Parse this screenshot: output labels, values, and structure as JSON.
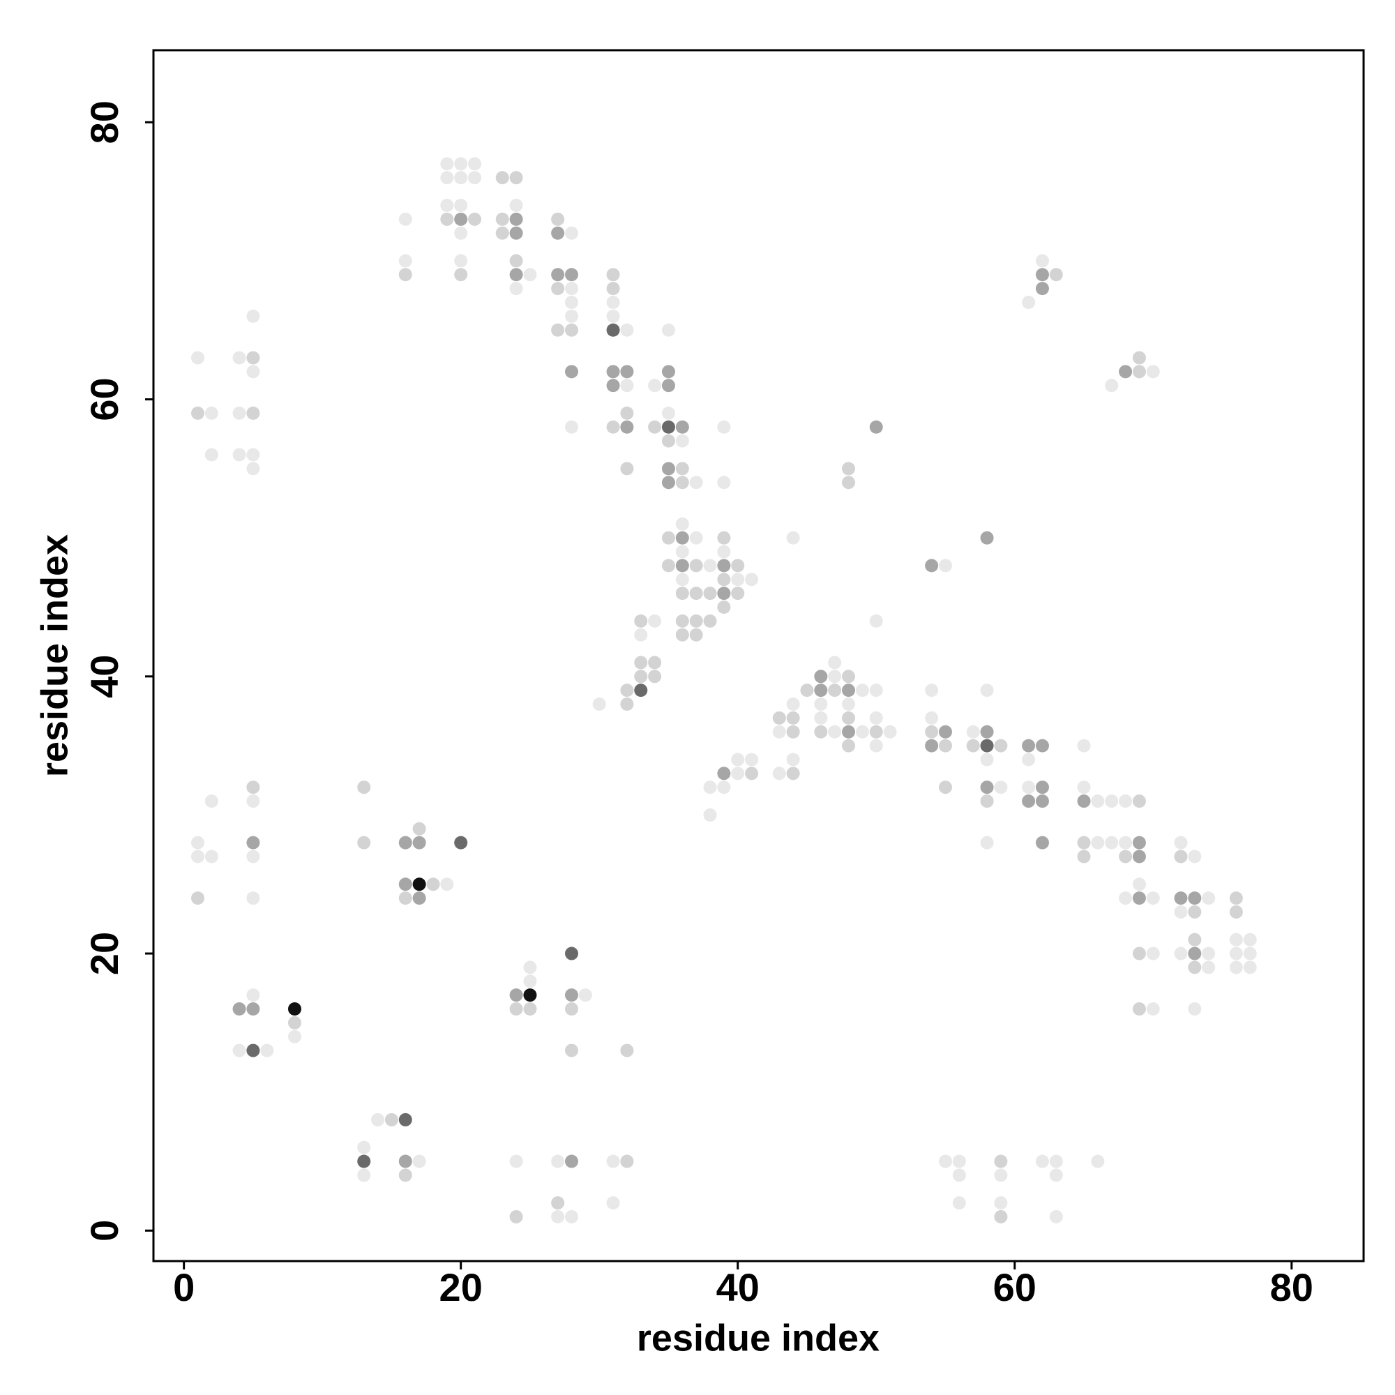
{
  "chart_data": {
    "type": "scatter",
    "x_label": "residue index",
    "y_label": "residue index",
    "xlim": [
      -2.2,
      85.2
    ],
    "ylim": [
      -2.2,
      85.2
    ],
    "xticks": [
      0,
      20,
      40,
      60,
      80
    ],
    "yticks": [
      0,
      20,
      40,
      60,
      80
    ],
    "series": [
      {
        "color": "#e8e8e8",
        "x": [
          13,
          13,
          14,
          17,
          24,
          27,
          31,
          27,
          28,
          31,
          55,
          56,
          56,
          56,
          59,
          59,
          62,
          63,
          63,
          63,
          66,
          5,
          8,
          4,
          6,
          25,
          25,
          29,
          1,
          1,
          2,
          2,
          5,
          5,
          5,
          19,
          1,
          2,
          4,
          5,
          5,
          4,
          2,
          4,
          5,
          5,
          16,
          16,
          19,
          20,
          21,
          19,
          20,
          21,
          19,
          20,
          20,
          20,
          24,
          25,
          24,
          28,
          28,
          28,
          28,
          28,
          31,
          31,
          32,
          32,
          34,
          35,
          35,
          36,
          37,
          39,
          39,
          36,
          37,
          36,
          39,
          38,
          36,
          40,
          41,
          34,
          33,
          30,
          44,
          50,
          38,
          39,
          38,
          40,
          41,
          40,
          43,
          44,
          44,
          43,
          47,
          47,
          49,
          50,
          46,
          48,
          46,
          50,
          47,
          49,
          51,
          50,
          54,
          54,
          55,
          57,
          58,
          58,
          59,
          58,
          61,
          61,
          65,
          65,
          66,
          67,
          68,
          66,
          67,
          68,
          72,
          73,
          68,
          70,
          69,
          74,
          72,
          72,
          74,
          74,
          76,
          77,
          76,
          77,
          76,
          77,
          70,
          70,
          73,
          62,
          61,
          67,
          70
        ],
        "y": [
          6,
          4,
          8,
          5,
          5,
          5,
          5,
          1,
          1,
          2,
          5,
          5,
          4,
          2,
          4,
          2,
          5,
          5,
          4,
          1,
          5,
          17,
          14,
          13,
          13,
          18,
          19,
          17,
          28,
          27,
          27,
          31,
          31,
          27,
          24,
          25,
          63,
          59,
          63,
          62,
          66,
          59,
          56,
          56,
          56,
          55,
          73,
          70,
          77,
          77,
          77,
          76,
          76,
          76,
          74,
          74,
          72,
          70,
          74,
          69,
          68,
          72,
          68,
          67,
          66,
          58,
          67,
          66,
          65,
          61,
          61,
          65,
          59,
          57,
          54,
          58,
          54,
          51,
          50,
          49,
          49,
          48,
          47,
          47,
          47,
          44,
          43,
          38,
          50,
          44,
          32,
          32,
          30,
          34,
          34,
          33,
          33,
          34,
          38,
          36,
          41,
          40,
          39,
          39,
          38,
          38,
          37,
          37,
          36,
          36,
          36,
          35,
          39,
          37,
          48,
          36,
          34,
          39,
          32,
          28,
          34,
          32,
          35,
          32,
          31,
          31,
          31,
          28,
          28,
          28,
          28,
          27,
          24,
          24,
          25,
          24,
          23,
          20,
          20,
          19,
          21,
          21,
          20,
          20,
          19,
          19,
          20,
          16,
          16,
          70,
          67,
          61,
          62
        ]
      },
      {
        "color": "#d3d3d3",
        "x": [
          13,
          13,
          15,
          16,
          32,
          24,
          27,
          59,
          59,
          8,
          24,
          25,
          28,
          28,
          32,
          1,
          5,
          17,
          16,
          18,
          1,
          5,
          5,
          16,
          19,
          21,
          20,
          23,
          24,
          23,
          23,
          24,
          27,
          27,
          27,
          28,
          31,
          31,
          32,
          31,
          32,
          34,
          35,
          36,
          36,
          35,
          39,
          35,
          37,
          40,
          39,
          36,
          37,
          38,
          40,
          39,
          36,
          37,
          38,
          36,
          37,
          33,
          33,
          34,
          33,
          34,
          32,
          32,
          48,
          48,
          41,
          44,
          43,
          44,
          44,
          45,
          48,
          47,
          48,
          46,
          50,
          48,
          54,
          55,
          55,
          57,
          59,
          58,
          69,
          65,
          65,
          68,
          72,
          73,
          76,
          76,
          73,
          73,
          69,
          69,
          63,
          69,
          69
        ],
        "y": [
          28,
          32,
          8,
          4,
          5,
          1,
          2,
          5,
          1,
          15,
          16,
          16,
          16,
          13,
          13,
          24,
          32,
          29,
          24,
          25,
          59,
          63,
          59,
          69,
          73,
          73,
          69,
          76,
          76,
          73,
          72,
          70,
          73,
          68,
          65,
          65,
          69,
          68,
          59,
          58,
          55,
          58,
          57,
          55,
          54,
          50,
          50,
          48,
          48,
          48,
          47,
          46,
          46,
          46,
          46,
          45,
          44,
          44,
          44,
          43,
          43,
          44,
          41,
          41,
          40,
          40,
          39,
          38,
          55,
          54,
          33,
          33,
          37,
          37,
          36,
          39,
          40,
          39,
          37,
          36,
          36,
          35,
          36,
          35,
          32,
          35,
          35,
          31,
          31,
          28,
          27,
          27,
          27,
          23,
          24,
          23,
          21,
          19,
          20,
          16,
          69,
          62,
          63
        ]
      },
      {
        "color": "#a6a6a6",
        "x": [
          16,
          28,
          4,
          5,
          24,
          28,
          5,
          16,
          17,
          16,
          17,
          20,
          24,
          24,
          24,
          27,
          27,
          28,
          28,
          31,
          32,
          31,
          32,
          35,
          35,
          36,
          35,
          35,
          36,
          36,
          39,
          39,
          50,
          39,
          46,
          46,
          48,
          48,
          55,
          54,
          54,
          58,
          58,
          58,
          61,
          62,
          62,
          61,
          62,
          62,
          65,
          69,
          69,
          69,
          72,
          73,
          73,
          62,
          62,
          68
        ],
        "y": [
          5,
          5,
          16,
          16,
          17,
          17,
          28,
          28,
          28,
          25,
          24,
          73,
          73,
          72,
          69,
          72,
          69,
          69,
          62,
          62,
          62,
          61,
          58,
          62,
          61,
          58,
          55,
          54,
          50,
          48,
          48,
          46,
          58,
          33,
          40,
          39,
          39,
          36,
          36,
          35,
          48,
          36,
          32,
          50,
          35,
          35,
          32,
          31,
          31,
          28,
          31,
          28,
          27,
          24,
          24,
          24,
          20,
          69,
          68,
          62
        ]
      },
      {
        "color": "#6a6a6a",
        "x": [
          13,
          16,
          5,
          28,
          20,
          31,
          35,
          33,
          58
        ],
        "y": [
          5,
          8,
          13,
          20,
          28,
          65,
          58,
          39,
          35
        ]
      },
      {
        "color": "#111111",
        "x": [
          8,
          25,
          17
        ],
        "y": [
          16,
          17,
          25
        ]
      }
    ]
  }
}
